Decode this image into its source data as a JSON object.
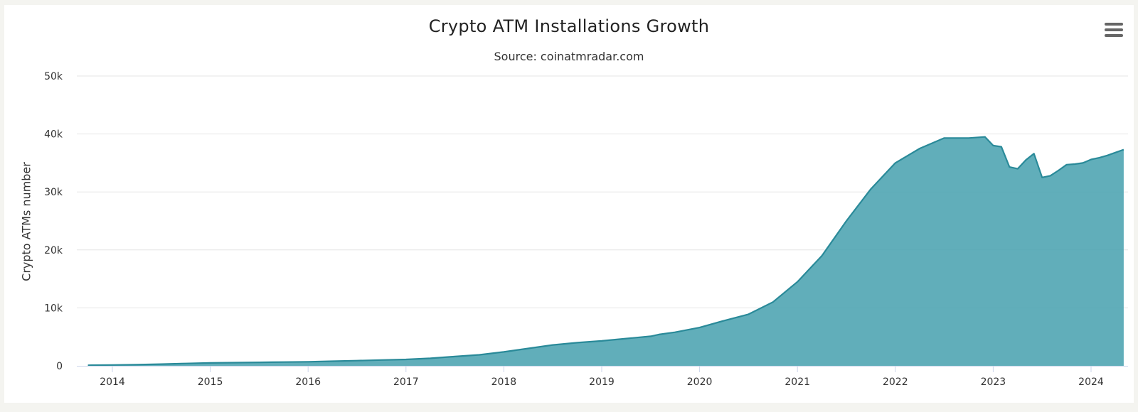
{
  "chart_data": {
    "type": "area",
    "title": "Crypto ATM Installations Growth",
    "subtitle": "Source: coinatmradar.com",
    "xlabel": "",
    "ylabel": "Crypto ATMs number",
    "x_ticks": [
      "2014",
      "2015",
      "2016",
      "2017",
      "2018",
      "2019",
      "2020",
      "2021",
      "2022",
      "2023",
      "2024"
    ],
    "y_ticks": [
      "0",
      "10k",
      "20k",
      "30k",
      "40k",
      "50k"
    ],
    "xlim": [
      "2013-10",
      "2024-05"
    ],
    "ylim": [
      0,
      50000
    ],
    "grid": "horizontal",
    "legend": "none",
    "color": "#4ba3b0",
    "line_color": "#2a8a99",
    "series": [
      {
        "x": [
          "2013-10",
          "2014-01",
          "2014-04",
          "2014-07",
          "2014-10",
          "2015-01",
          "2015-04",
          "2015-07",
          "2015-10",
          "2016-01",
          "2016-04",
          "2016-07",
          "2016-10",
          "2017-01",
          "2017-04",
          "2017-07",
          "2017-10",
          "2018-01",
          "2018-04",
          "2018-07",
          "2018-10",
          "2019-01",
          "2019-04",
          "2019-07",
          "2019-08",
          "2019-10",
          "2020-01",
          "2020-04",
          "2020-07",
          "2020-10",
          "2021-01",
          "2021-04",
          "2021-07",
          "2021-10",
          "2022-01",
          "2022-04",
          "2022-07",
          "2022-10",
          "2022-12",
          "2023-01",
          "2023-02",
          "2023-03",
          "2023-04",
          "2023-05",
          "2023-06",
          "2023-07",
          "2023-08",
          "2023-09",
          "2023-10",
          "2023-11",
          "2023-12",
          "2024-01",
          "2024-02",
          "2024-03",
          "2024-04",
          "2024-05"
        ],
        "values": [
          100,
          150,
          200,
          300,
          400,
          500,
          550,
          600,
          650,
          700,
          800,
          900,
          1000,
          1100,
          1300,
          1600,
          1900,
          2400,
          3000,
          3600,
          4000,
          4300,
          4700,
          5100,
          5400,
          5800,
          6600,
          7800,
          8900,
          11000,
          14500,
          19000,
          25000,
          30500,
          35000,
          37500,
          39300,
          39300,
          39500,
          38000,
          37800,
          34300,
          34000,
          35500,
          36600,
          32500,
          32800,
          33700,
          34700,
          34800,
          35000,
          35600,
          35900,
          36300,
          36800,
          37300
        ]
      }
    ]
  },
  "menu": {
    "icon": "hamburger-icon"
  }
}
